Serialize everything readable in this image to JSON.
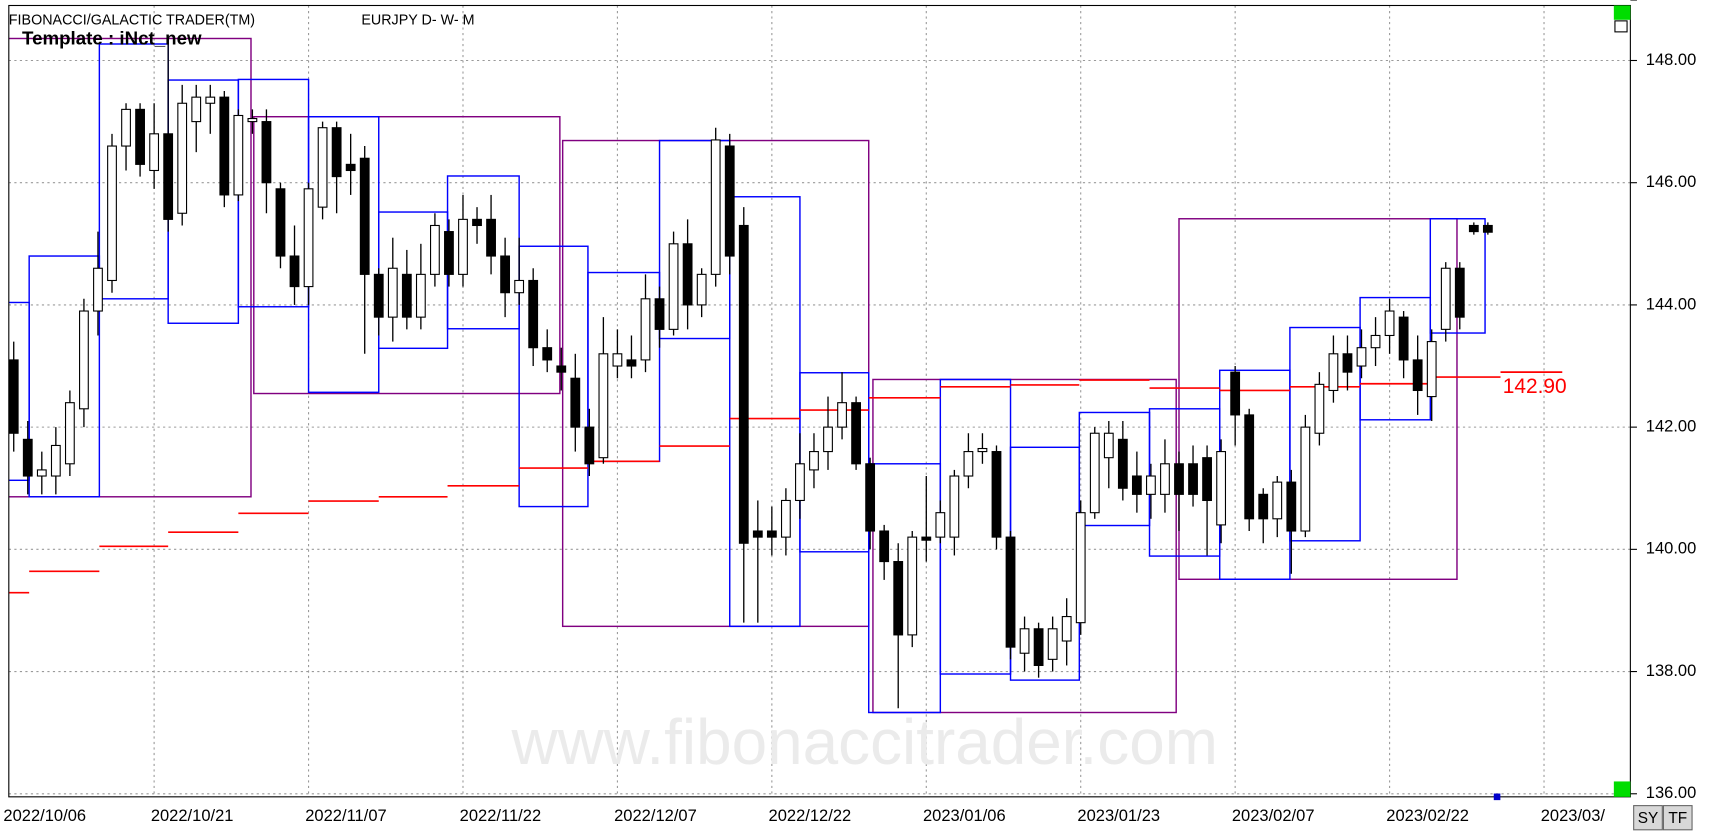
{
  "chart_data": {
    "type": "candlestick",
    "title": "FIBONACCI/GALACTIC TRADER(TM)",
    "subtitle": "EURJPY D- W- M",
    "template": "Template : iNct_new",
    "watermark": "www.fibonaccitrader.com",
    "grid": true,
    "up_color": "#ffffff",
    "down_color": "#000000",
    "xlim": [
      -0.35,
      115.15
    ],
    "ylim": [
      135.95,
      148.9
    ],
    "xticks": [
      {
        "value": -0.5,
        "label": "2022/10/06"
      },
      {
        "value": 10,
        "label": "2022/10/21"
      },
      {
        "value": 21,
        "label": "2022/11/07"
      },
      {
        "value": 32,
        "label": "2022/11/22"
      },
      {
        "value": 43,
        "label": "2022/12/07"
      },
      {
        "value": 54,
        "label": "2022/12/22"
      },
      {
        "value": 65,
        "label": "2023/01/06"
      },
      {
        "value": 76,
        "label": "2023/01/23"
      },
      {
        "value": 87,
        "label": "2023/02/07"
      },
      {
        "value": 98,
        "label": "2023/02/22"
      },
      {
        "value": 109,
        "label": "2023/03/"
      }
    ],
    "yticks": [
      {
        "value": 136,
        "label": "136.00"
      },
      {
        "value": 138,
        "label": "138.00"
      },
      {
        "value": 140,
        "label": "140.00"
      },
      {
        "value": 142,
        "label": "142.00"
      },
      {
        "value": 144,
        "label": "144.00"
      },
      {
        "value": 146,
        "label": "146.00"
      },
      {
        "value": 148,
        "label": "148.00"
      }
    ],
    "open": [
      143.1,
      141.8,
      141.2,
      141.2,
      141.4,
      142.3,
      143.9,
      144.4,
      146.6,
      147.2,
      146.2,
      146.8,
      145.5,
      147.0,
      147.3,
      147.4,
      145.8,
      147.0,
      147.0,
      145.9,
      144.8,
      144.3,
      145.6,
      146.9,
      146.3,
      146.4,
      144.5,
      143.8,
      144.5,
      143.8,
      144.5,
      145.2,
      144.5,
      145.4,
      145.4,
      144.8,
      144.2,
      144.4,
      143.3,
      143.0,
      142.8,
      142.0,
      141.5,
      143.0,
      143.1,
      143.1,
      144.1,
      143.6,
      145.0,
      144.0,
      144.5,
      146.6,
      145.3,
      140.3,
      140.3,
      140.2,
      140.8,
      141.3,
      141.6,
      142.0,
      142.4,
      141.4,
      140.3,
      139.8,
      138.6,
      140.2,
      140.2,
      140.2,
      141.2,
      141.6,
      141.6,
      140.2,
      138.3,
      138.7,
      138.2,
      138.5,
      138.8,
      140.6,
      141.5,
      141.8,
      141.2,
      140.9,
      140.9,
      141.4,
      141.4,
      141.5,
      140.4,
      142.9,
      142.2,
      140.9,
      140.5,
      141.1,
      140.3,
      141.9,
      142.6,
      143.2,
      143.0,
      143.3,
      143.5,
      143.8,
      143.1,
      142.5,
      143.6,
      144.6,
      145.3,
      145.3
    ],
    "high": [
      143.4,
      142.1,
      141.6,
      142.0,
      142.6,
      144.1,
      145.2,
      146.8,
      147.3,
      147.3,
      147.3,
      148.3,
      147.6,
      147.6,
      147.6,
      147.5,
      147.2,
      147.2,
      147.2,
      146.0,
      145.3,
      146.0,
      147.0,
      147.0,
      146.8,
      146.6,
      144.6,
      145.1,
      144.9,
      145.0,
      145.5,
      145.4,
      145.8,
      145.6,
      145.8,
      145.1,
      145.1,
      144.6,
      143.6,
      143.3,
      143.2,
      142.3,
      143.8,
      143.6,
      143.5,
      144.5,
      144.3,
      145.2,
      145.4,
      144.6,
      146.9,
      146.8,
      145.6,
      140.8,
      140.7,
      141.0,
      141.9,
      141.9,
      142.5,
      142.9,
      142.5,
      141.5,
      140.4,
      140.1,
      140.3,
      141.2,
      140.8,
      141.3,
      141.9,
      141.9,
      141.7,
      140.3,
      138.9,
      138.8,
      138.9,
      139.2,
      140.8,
      142.0,
      142.1,
      142.1,
      141.6,
      141.4,
      141.8,
      141.6,
      141.7,
      141.7,
      141.8,
      143.0,
      142.3,
      141.0,
      141.2,
      141.3,
      142.2,
      142.9,
      143.5,
      143.5,
      143.6,
      143.8,
      144.1,
      143.9,
      143.5,
      143.6,
      144.7,
      144.7,
      145.35,
      145.35
    ],
    "low": [
      141.6,
      140.9,
      140.9,
      140.9,
      141.2,
      142.0,
      143.5,
      144.2,
      146.2,
      146.1,
      145.9,
      145.2,
      145.3,
      146.5,
      146.8,
      145.6,
      145.7,
      146.8,
      145.5,
      144.6,
      144.0,
      144.0,
      145.4,
      145.5,
      145.8,
      143.2,
      143.5,
      143.4,
      143.6,
      143.6,
      144.3,
      144.3,
      144.3,
      145.0,
      144.5,
      143.8,
      144.0,
      143.0,
      142.9,
      142.6,
      141.6,
      141.2,
      141.4,
      142.8,
      142.8,
      142.9,
      143.3,
      143.5,
      143.6,
      143.8,
      144.3,
      144.5,
      138.8,
      138.8,
      139.9,
      139.9,
      140.5,
      141.0,
      141.3,
      141.8,
      141.3,
      140.0,
      139.5,
      137.4,
      138.4,
      139.8,
      140.1,
      139.9,
      141.0,
      141.4,
      140.0,
      138.2,
      138.0,
      137.9,
      138.0,
      138.1,
      138.6,
      140.5,
      141.0,
      140.8,
      140.6,
      140.5,
      140.6,
      140.3,
      140.7,
      139.9,
      140.1,
      141.7,
      140.3,
      140.1,
      140.2,
      139.6,
      140.2,
      141.7,
      142.4,
      142.6,
      142.8,
      143.0,
      143.2,
      142.8,
      142.2,
      142.1,
      143.4,
      143.6,
      145.15,
      145.15
    ],
    "close": [
      141.9,
      141.2,
      141.3,
      141.7,
      142.4,
      143.9,
      144.6,
      146.6,
      147.2,
      146.3,
      146.8,
      145.4,
      147.3,
      147.4,
      147.4,
      145.8,
      147.1,
      147.05,
      146.0,
      144.8,
      144.3,
      145.9,
      146.9,
      146.1,
      146.2,
      144.5,
      143.8,
      144.6,
      143.8,
      144.5,
      145.3,
      144.5,
      145.4,
      145.3,
      144.8,
      144.2,
      144.4,
      143.3,
      143.1,
      142.9,
      142.0,
      141.4,
      143.2,
      143.2,
      143.0,
      144.1,
      143.6,
      145.0,
      144.0,
      144.5,
      146.7,
      144.8,
      140.1,
      140.2,
      140.2,
      140.8,
      141.4,
      141.6,
      142.0,
      142.4,
      141.4,
      140.3,
      139.8,
      138.6,
      140.2,
      140.15,
      140.6,
      141.2,
      141.6,
      141.65,
      140.2,
      138.4,
      138.7,
      138.1,
      138.7,
      138.9,
      140.6,
      141.9,
      141.9,
      141.0,
      140.9,
      141.2,
      141.4,
      140.9,
      140.9,
      140.8,
      141.6,
      142.2,
      140.5,
      140.5,
      141.1,
      140.3,
      142.0,
      142.7,
      143.2,
      142.9,
      143.3,
      143.5,
      143.9,
      143.1,
      142.6,
      143.4,
      144.6,
      143.8,
      145.2,
      145.19
    ],
    "box_groups": [
      {
        "color": "#800080",
        "boxes": [
          {
            "x0": -1,
            "x1": 16.9,
            "low": 140.86,
            "high": 148.36
          },
          {
            "x0": 17.1,
            "x1": 38.9,
            "low": 142.55,
            "high": 147.08
          },
          {
            "x0": 39.1,
            "x1": 60.9,
            "low": 138.74,
            "high": 146.69
          },
          {
            "x0": 61.2,
            "x1": 82.8,
            "low": 137.33,
            "high": 142.78
          },
          {
            "x0": 83.0,
            "x1": 102.8,
            "low": 139.51,
            "high": 145.41
          }
        ]
      },
      {
        "color": "#0000ff",
        "boxes": [
          {
            "x0": -1,
            "x1": 1.1,
            "low": 141.13,
            "high": 144.04
          },
          {
            "x0": 1.1,
            "x1": 6.1,
            "low": 140.86,
            "high": 144.8
          },
          {
            "x0": 6.1,
            "x1": 11.0,
            "low": 144.1,
            "high": 148.27
          },
          {
            "x0": 11.0,
            "x1": 16.0,
            "low": 143.7,
            "high": 147.68
          },
          {
            "x0": 16.0,
            "x1": 21.0,
            "low": 143.97,
            "high": 147.69
          },
          {
            "x0": 21.0,
            "x1": 26.0,
            "low": 142.57,
            "high": 147.08
          },
          {
            "x0": 26.0,
            "x1": 30.9,
            "low": 143.29,
            "high": 145.52
          },
          {
            "x0": 30.9,
            "x1": 36.0,
            "low": 143.61,
            "high": 146.11
          },
          {
            "x0": 36.0,
            "x1": 40.9,
            "low": 140.7,
            "high": 144.96
          },
          {
            "x0": 40.9,
            "x1": 46.0,
            "low": 141.44,
            "high": 144.53
          },
          {
            "x0": 46.0,
            "x1": 51.0,
            "low": 143.45,
            "high": 146.69
          },
          {
            "x0": 51.0,
            "x1": 56.0,
            "low": 138.74,
            "high": 145.77
          },
          {
            "x0": 56.0,
            "x1": 60.9,
            "low": 139.96,
            "high": 142.89
          },
          {
            "x0": 60.9,
            "x1": 66.0,
            "low": 137.33,
            "high": 141.4
          },
          {
            "x0": 66.0,
            "x1": 71.0,
            "low": 137.96,
            "high": 142.78
          },
          {
            "x0": 71.0,
            "x1": 75.9,
            "low": 137.86,
            "high": 141.67
          },
          {
            "x0": 75.9,
            "x1": 80.9,
            "low": 140.39,
            "high": 142.24
          },
          {
            "x0": 80.9,
            "x1": 85.9,
            "low": 139.89,
            "high": 142.3
          },
          {
            "x0": 85.9,
            "x1": 90.9,
            "low": 139.51,
            "high": 142.93
          },
          {
            "x0": 90.9,
            "x1": 95.9,
            "low": 140.14,
            "high": 143.63
          },
          {
            "x0": 95.9,
            "x1": 100.9,
            "low": 142.12,
            "high": 144.12
          },
          {
            "x0": 100.9,
            "x1": 104.8,
            "low": 143.54,
            "high": 145.41
          }
        ]
      }
    ],
    "level_line": {
      "color": "#ff0000",
      "steps": [
        {
          "x0": -1,
          "x1": 1.1,
          "value": 139.29
        },
        {
          "x0": 1.1,
          "x1": 6.1,
          "value": 139.64
        },
        {
          "x0": 6.1,
          "x1": 11.0,
          "value": 140.05
        },
        {
          "x0": 11.0,
          "x1": 16.0,
          "value": 140.28
        },
        {
          "x0": 16.0,
          "x1": 21.0,
          "value": 140.59
        },
        {
          "x0": 21.0,
          "x1": 26.0,
          "value": 140.79
        },
        {
          "x0": 26.0,
          "x1": 30.9,
          "value": 140.86
        },
        {
          "x0": 30.9,
          "x1": 36.0,
          "value": 141.04
        },
        {
          "x0": 36.0,
          "x1": 40.9,
          "value": 141.33
        },
        {
          "x0": 40.9,
          "x1": 46.0,
          "value": 141.44
        },
        {
          "x0": 46.0,
          "x1": 51.0,
          "value": 141.69
        },
        {
          "x0": 51.0,
          "x1": 56.0,
          "value": 142.14
        },
        {
          "x0": 56.0,
          "x1": 60.9,
          "value": 142.28
        },
        {
          "x0": 60.9,
          "x1": 66.0,
          "value": 142.48
        },
        {
          "x0": 66.0,
          "x1": 71.0,
          "value": 142.66
        },
        {
          "x0": 71.0,
          "x1": 75.9,
          "value": 142.69
        },
        {
          "x0": 75.9,
          "x1": 80.9,
          "value": 142.77
        },
        {
          "x0": 80.9,
          "x1": 85.9,
          "value": 142.64
        },
        {
          "x0": 85.9,
          "x1": 90.9,
          "value": 142.6
        },
        {
          "x0": 90.9,
          "x1": 95.9,
          "value": 142.66
        },
        {
          "x0": 95.9,
          "x1": 100.9,
          "value": 142.71
        },
        {
          "x0": 100.9,
          "x1": 105.9,
          "value": 142.82
        }
      ],
      "current": {
        "x0": 105.9,
        "x1": 110.3,
        "value": 142.9,
        "value_label": "142.90"
      }
    },
    "last_price": 145.19
  },
  "toolbar": {
    "buttons": [
      "SY",
      "TF"
    ]
  }
}
